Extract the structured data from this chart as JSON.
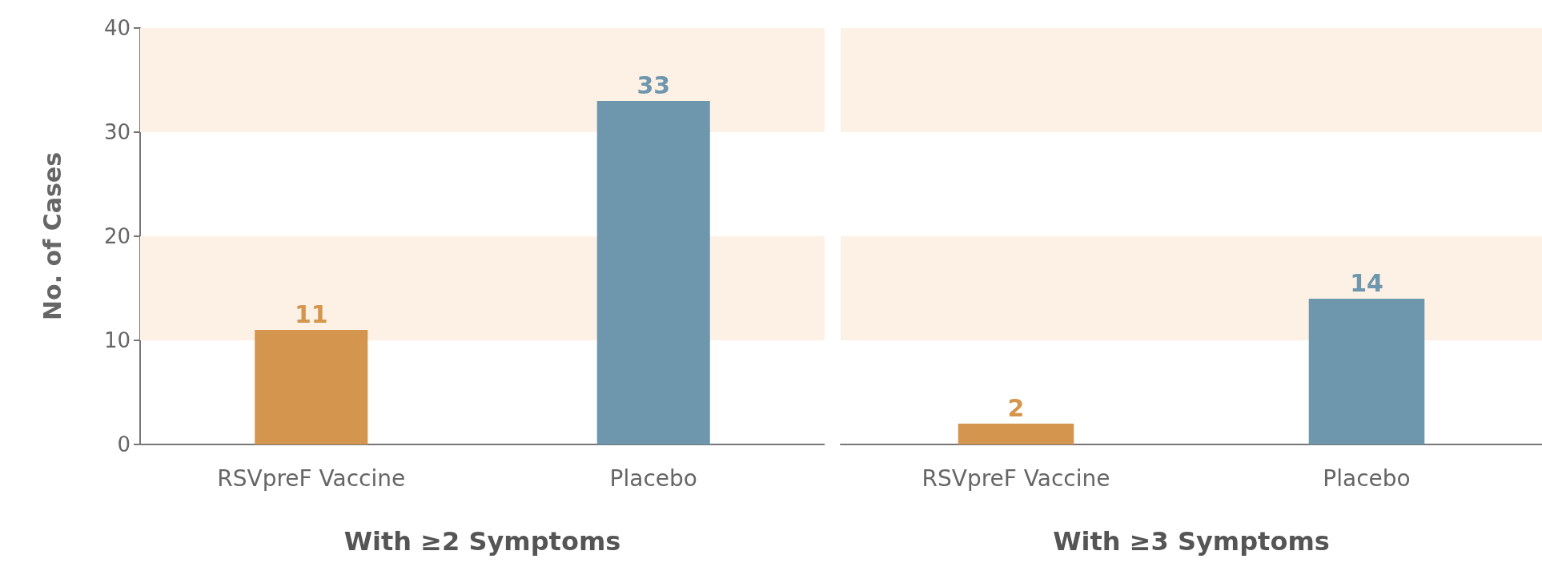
{
  "chart_data": [
    {
      "type": "bar",
      "categories": [
        "RSVpreF Vaccine",
        "Placebo"
      ],
      "values": [
        11,
        33
      ],
      "colors": [
        "#d4964e",
        "#6e97ae"
      ],
      "data_labels": true,
      "xlabel": "With ≥2 Symptoms",
      "ylabel": "No. of Cases",
      "ylim": [
        0,
        40
      ],
      "yticks": [
        0,
        10,
        20,
        30,
        40
      ],
      "bands": [
        {
          "axis": "y",
          "from": 10,
          "to": 20,
          "color": "#fdf1e6"
        },
        {
          "axis": "y",
          "from": 30,
          "to": 40,
          "color": "#fdf1e6"
        }
      ]
    },
    {
      "type": "bar",
      "categories": [
        "RSVpreF Vaccine",
        "Placebo"
      ],
      "values": [
        2,
        14
      ],
      "colors": [
        "#d4964e",
        "#6e97ae"
      ],
      "data_labels": true,
      "xlabel": "With ≥3 Symptoms",
      "ylim": [
        0,
        40
      ],
      "yticks": [
        0,
        10,
        20,
        30,
        40
      ],
      "tick_labels": "x",
      "bands": [
        {
          "axis": "y",
          "from": 10,
          "to": 20,
          "color": "#fdf1e6"
        },
        {
          "axis": "y",
          "from": 30,
          "to": 40,
          "color": "#fdf1e6"
        }
      ]
    }
  ]
}
